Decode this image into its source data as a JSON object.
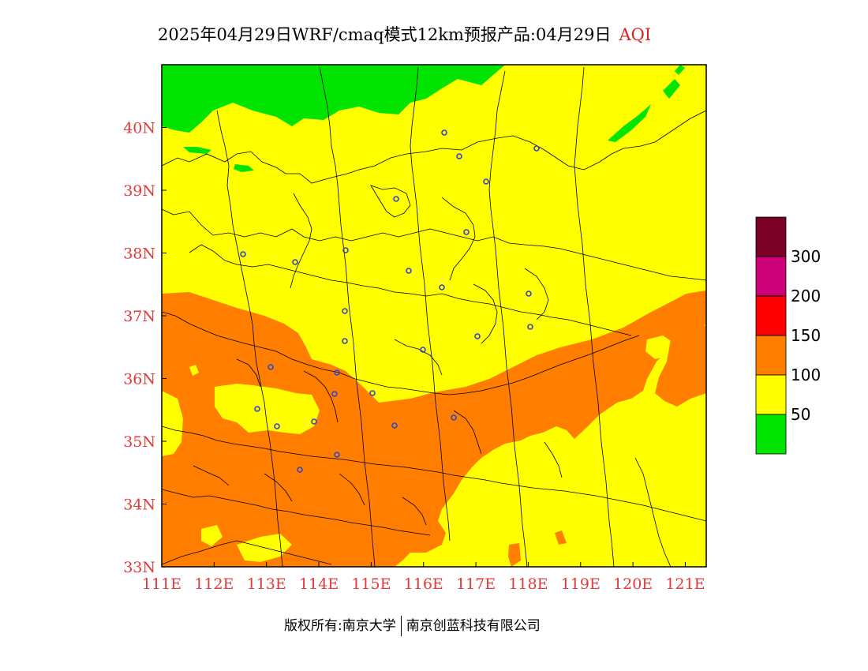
{
  "header": {
    "title": "2025年04月29日WRF/cmaq模式12km预报产品:04月29日",
    "variable": "AQI"
  },
  "footer": {
    "left": "版权所有:南京大学",
    "right": "南京创蓝科技有限公司"
  },
  "axes": {
    "lon_labels": [
      "111E",
      "112E",
      "113E",
      "114E",
      "115E",
      "116E",
      "117E",
      "118E",
      "119E",
      "120E",
      "121E"
    ],
    "lat_labels": [
      "40N",
      "39N",
      "38N",
      "37N",
      "36N",
      "35N",
      "34N",
      "33N"
    ]
  },
  "legend": {
    "colors": [
      "#7a0026",
      "#cc0077",
      "#ff0000",
      "#ff7e00",
      "#ffff00",
      "#00e400"
    ],
    "labels": [
      "300",
      "200",
      "150",
      "100",
      "50"
    ]
  },
  "chart_data": {
    "type": "heatmap",
    "title": "2025年04月29日WRF/cmaq模式12km预报产品:04月29日",
    "variable": "AQI",
    "xlim": [
      111,
      121.4
    ],
    "ylim": [
      33,
      41
    ],
    "categories": [
      {
        "range": "0-50",
        "color": "#00e400",
        "region": "northern edge (~40-41N, 111-117E) and small patch near 120E 39.8N"
      },
      {
        "range": "50-100",
        "color": "#ffff00",
        "region": "most of domain north of ~36.5N and southeast of ~34.5N"
      },
      {
        "range": "100-150",
        "color": "#ff7e00",
        "region": "southwest-to-northeast band from ~111E 33-37N to ~121E 36.5N"
      },
      {
        "range": "150-200",
        "color": "#ff0000",
        "region": "none"
      },
      {
        "range": "200-300",
        "color": "#cc0077",
        "region": "none"
      },
      {
        "range": ">300",
        "color": "#7a0026",
        "region": "none"
      }
    ],
    "city_markers": 27
  }
}
